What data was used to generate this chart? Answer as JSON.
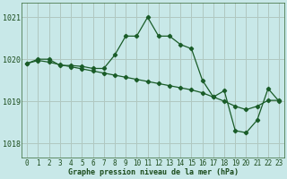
{
  "xlabel": "Graphe pression niveau de la mer (hPa)",
  "background_color": "#c8e8e8",
  "plot_bg_color": "#c8e8e8",
  "grid_color": "#b0c8c0",
  "line_color": "#1a5c28",
  "ylim": [
    1017.65,
    1021.35
  ],
  "yticks": [
    1018,
    1019,
    1020,
    1021
  ],
  "xticks": [
    0,
    1,
    2,
    3,
    4,
    5,
    6,
    7,
    8,
    9,
    10,
    11,
    12,
    13,
    14,
    15,
    16,
    17,
    18,
    19,
    20,
    21,
    22,
    23
  ],
  "series1_x": [
    0,
    1,
    2,
    3,
    4,
    5,
    6,
    7,
    8,
    9,
    10,
    11,
    12,
    13,
    14,
    15,
    16,
    17,
    18,
    19,
    20,
    21,
    22,
    23
  ],
  "series1_y": [
    1019.9,
    1020.0,
    1020.0,
    1019.85,
    1019.85,
    1019.83,
    1019.78,
    1019.78,
    1020.1,
    1020.55,
    1020.55,
    1021.0,
    1020.55,
    1020.55,
    1020.35,
    1020.25,
    1019.5,
    1019.1,
    1019.25,
    1018.3,
    1018.25,
    1018.55,
    1019.3,
    1019.0
  ],
  "series2_x": [
    0,
    1,
    2,
    3,
    4,
    5,
    6,
    7,
    8,
    9,
    10,
    11,
    12,
    13,
    14,
    15,
    16,
    17,
    18,
    19,
    20,
    21,
    22,
    23
  ],
  "series2_y": [
    1019.9,
    1019.97,
    1019.93,
    1019.87,
    1019.82,
    1019.77,
    1019.72,
    1019.67,
    1019.62,
    1019.57,
    1019.52,
    1019.47,
    1019.42,
    1019.37,
    1019.32,
    1019.27,
    1019.2,
    1019.1,
    1019.0,
    1018.88,
    1018.8,
    1018.88,
    1019.02,
    1019.02
  ],
  "xlabel_fontsize": 6.0,
  "xlabel_fontweight": "bold",
  "tick_fontsize": 5.5,
  "ytick_fontsize": 6.0,
  "marker_size": 2.2,
  "line_width": 0.9
}
